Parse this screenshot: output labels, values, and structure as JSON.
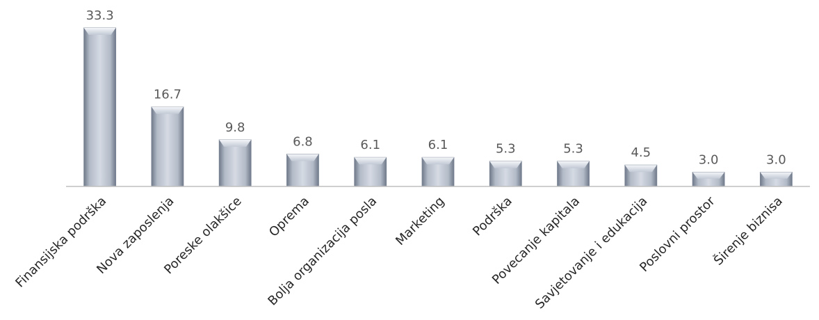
{
  "chart_data": {
    "type": "bar",
    "categories": [
      "Finansijska podrška",
      "Nova zaposlenja",
      "Poreske olakšice",
      "Oprema",
      "Bolja organizacija posla",
      "Marketing",
      "Podrška",
      "Povecanje kapitala",
      "Savjetovanje i edukacija",
      "Poslovni prostor",
      "Širenje biznisa"
    ],
    "values": [
      33.3,
      16.7,
      9.8,
      6.8,
      6.1,
      6.1,
      5.3,
      5.3,
      4.5,
      3.0,
      3.0
    ],
    "value_labels": [
      "33.3",
      "16.7",
      "9.8",
      "6.8",
      "6.1",
      "6.1",
      "5.3",
      "5.3",
      "4.5",
      "3.0",
      "3.0"
    ],
    "ylim": [
      0,
      34
    ],
    "grid": false,
    "legend": "none",
    "colors": {
      "bar_light": "#e3e7ee",
      "bar_mid": "#b3bbc8",
      "bar_dark": "#6c7686",
      "axis": "#bfbfbf"
    }
  }
}
